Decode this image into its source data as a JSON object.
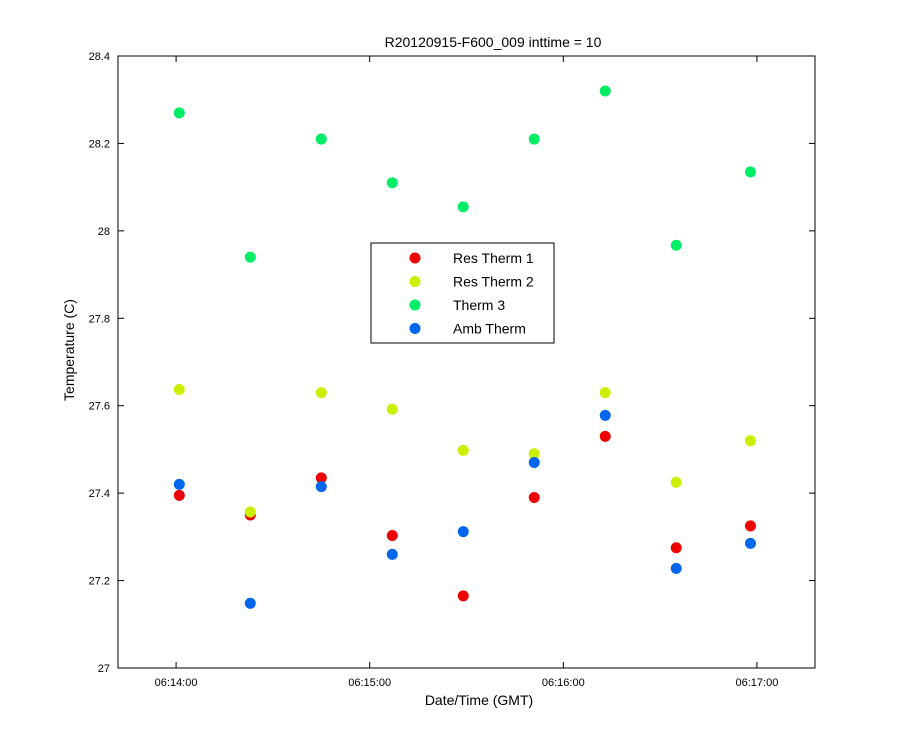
{
  "chart_data": {
    "type": "scatter",
    "title": "R20120915-F600_009 inttime = 10",
    "xlabel": "Date/Time (GMT)",
    "ylabel": "Temperature (C)",
    "x_ticks": [
      "06:14:00",
      "06:15:00",
      "06:16:00",
      "06:17:00"
    ],
    "xlim": [
      "06:13:42",
      "06:17:18"
    ],
    "y_ticks": [
      "27",
      "27.2",
      "27.4",
      "27.6",
      "27.8",
      "28",
      "28.2",
      "28.4"
    ],
    "ylim": [
      27,
      28.4
    ],
    "grid": false,
    "legend_position": "center",
    "x": [
      "06:14:01",
      "06:14:23",
      "06:14:45",
      "06:15:07",
      "06:15:29",
      "06:15:51",
      "06:16:13",
      "06:16:35",
      "06:16:58"
    ],
    "series": [
      {
        "name": "Res Therm 1",
        "color": "#ee0000",
        "values": [
          27.395,
          27.35,
          27.435,
          27.303,
          27.165,
          27.39,
          27.53,
          27.275,
          27.325
        ]
      },
      {
        "name": "Res Therm 2",
        "color": "#ccee00",
        "values": [
          27.637,
          27.357,
          27.63,
          27.592,
          27.498,
          27.49,
          27.63,
          27.425,
          27.52
        ]
      },
      {
        "name": "Therm 3",
        "color": "#00ee66",
        "values": [
          28.27,
          27.94,
          28.21,
          28.11,
          28.055,
          28.21,
          28.32,
          27.967,
          28.135
        ]
      },
      {
        "name": "Amb Therm",
        "color": "#0066ee",
        "values": [
          27.42,
          27.148,
          27.415,
          27.26,
          27.312,
          27.47,
          27.578,
          27.228,
          27.285
        ]
      }
    ]
  }
}
